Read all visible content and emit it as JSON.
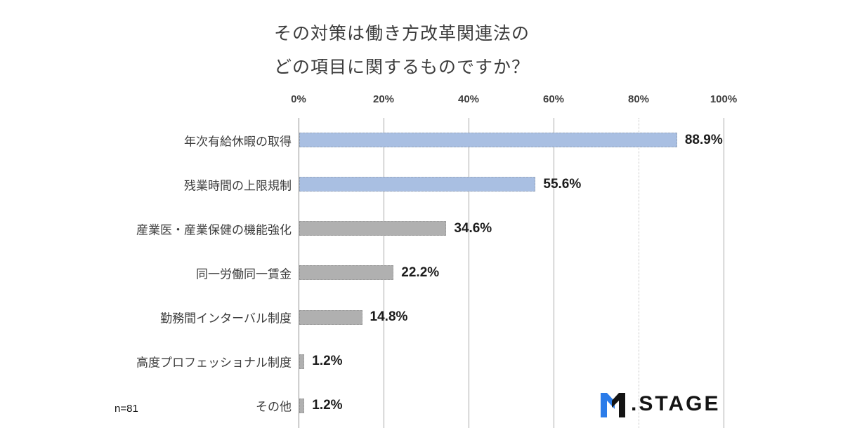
{
  "title": {
    "line1": "その対策は働き方改革関連法の",
    "line2": "どの項目に関するものですか？"
  },
  "sample_size_label": "n=81",
  "logo": {
    "text": ".STAGE",
    "mark": "M",
    "blue": "#2b7ce9",
    "dark": "#141414"
  },
  "chart_data": {
    "type": "bar",
    "orientation": "horizontal",
    "title": "その対策は働き方改革関連法の どの項目に関するものですか？",
    "categories": [
      "年次有給休暇の取得",
      "残業時間の上限規制",
      "産業医・産業保健の機能強化",
      "同一労働同一賃金",
      "勤務間インターバル制度",
      "高度プロフェッショナル制度",
      "その他"
    ],
    "values": [
      88.9,
      55.6,
      34.6,
      22.2,
      14.8,
      1.2,
      1.2
    ],
    "value_labels": [
      "88.9%",
      "55.6%",
      "34.6%",
      "22.2%",
      "14.8%",
      "1.2%",
      "1.2%"
    ],
    "bar_colors": [
      "#a9bfe2",
      "#a9bfe2",
      "#b0b0b0",
      "#b0b0b0",
      "#b0b0b0",
      "#b0b0b0",
      "#b0b0b0"
    ],
    "highlight_color": "#a9bfe2",
    "base_color": "#b0b0b0",
    "xlabel": "",
    "ylabel": "",
    "xlim": [
      0,
      100
    ],
    "x_ticks": [
      {
        "label": "0%",
        "value": 0,
        "axis": true
      },
      {
        "label": "20%",
        "value": 20
      },
      {
        "label": "40%",
        "value": 40
      },
      {
        "label": "60%",
        "value": 60
      },
      {
        "label": "80%",
        "value": 80,
        "dotted": true
      },
      {
        "label": "100%",
        "value": 100
      }
    ],
    "grid": true,
    "legend": false,
    "sample_size": "n=81"
  }
}
